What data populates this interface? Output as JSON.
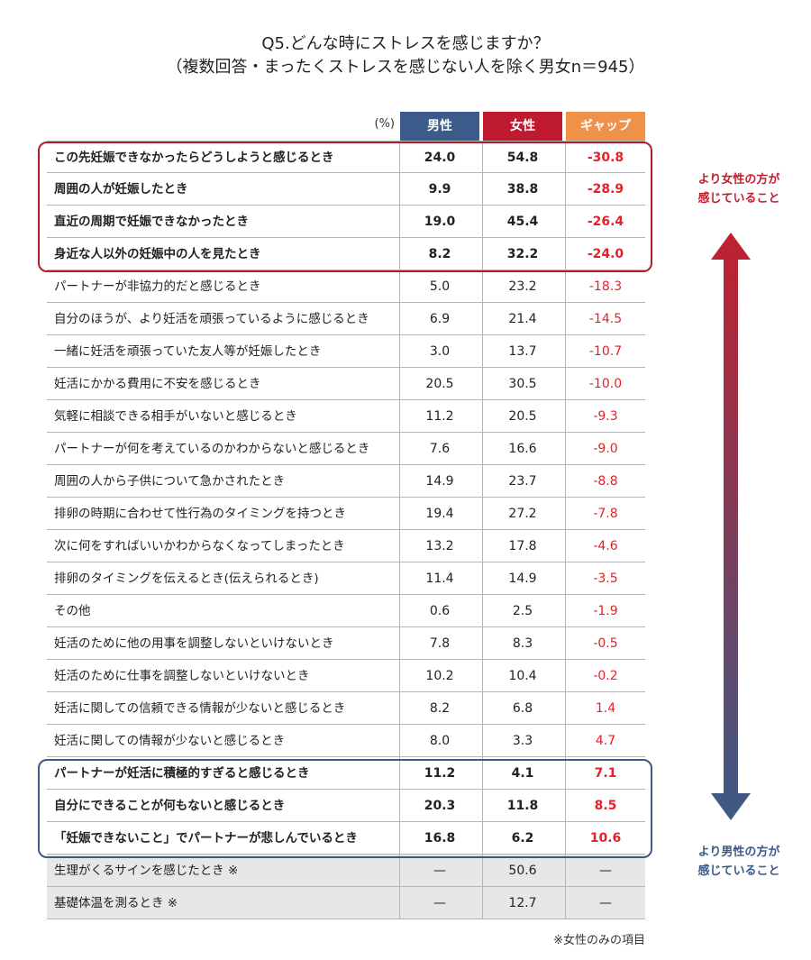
{
  "title_line1": "Q5.どんな時にストレスを感じますか？",
  "title_line2": "（複数回答・まったくストレスを感じない人を除く男女n＝945）",
  "unit_label": "(%)",
  "columns": {
    "male": "男性",
    "female": "女性",
    "gap": "ギャップ"
  },
  "side_labels": {
    "top_line1": "より女性の方が",
    "top_line2": "感じていること",
    "bottom_line1": "より男性の方が",
    "bottom_line2": "感じていること"
  },
  "note": "※女性のみの項目",
  "colors": {
    "male": "#3c5a8a",
    "female": "#bf1a2f",
    "gap": "#f0914a",
    "gap_text": "#e5212c",
    "highlight_female": "#b21e30",
    "highlight_male": "#3d5a86"
  },
  "chart_data": {
    "type": "table",
    "columns": [
      "男性",
      "女性",
      "ギャップ"
    ],
    "rows": [
      {
        "label": "この先妊娠できなかったらどうしようと感じるとき",
        "male": "24.0",
        "female": "54.8",
        "gap": "-30.8",
        "emphasis": true
      },
      {
        "label": "周囲の人が妊娠したとき",
        "male": "9.9",
        "female": "38.8",
        "gap": "-28.9",
        "emphasis": true
      },
      {
        "label": "直近の周期で妊娠できなかったとき",
        "male": "19.0",
        "female": "45.4",
        "gap": "-26.4",
        "emphasis": true
      },
      {
        "label": "身近な人以外の妊娠中の人を見たとき",
        "male": "8.2",
        "female": "32.2",
        "gap": "-24.0",
        "emphasis": true
      },
      {
        "label": "パートナーが非協力的だと感じるとき",
        "male": "5.0",
        "female": "23.2",
        "gap": "-18.3"
      },
      {
        "label": "自分のほうが、より妊活を頑張っているように感じるとき",
        "male": "6.9",
        "female": "21.4",
        "gap": "-14.5"
      },
      {
        "label": "一緒に妊活を頑張っていた友人等が妊娠したとき",
        "male": "3.0",
        "female": "13.7",
        "gap": "-10.7"
      },
      {
        "label": "妊活にかかる費用に不安を感じるとき",
        "male": "20.5",
        "female": "30.5",
        "gap": "-10.0"
      },
      {
        "label": "気軽に相談できる相手がいないと感じるとき",
        "male": "11.2",
        "female": "20.5",
        "gap": "-9.3"
      },
      {
        "label": "パートナーが何を考えているのかわからないと感じるとき",
        "male": "7.6",
        "female": "16.6",
        "gap": "-9.0"
      },
      {
        "label": "周囲の人から子供について急かされたとき",
        "male": "14.9",
        "female": "23.7",
        "gap": "-8.8"
      },
      {
        "label": "排卵の時期に合わせて性行為のタイミングを持つとき",
        "male": "19.4",
        "female": "27.2",
        "gap": "-7.8"
      },
      {
        "label": "次に何をすればいいかわからなくなってしまったとき",
        "male": "13.2",
        "female": "17.8",
        "gap": "-4.6"
      },
      {
        "label": "排卵のタイミングを伝えるとき(伝えられるとき)",
        "male": "11.4",
        "female": "14.9",
        "gap": "-3.5"
      },
      {
        "label": "その他",
        "male": "0.6",
        "female": "2.5",
        "gap": "-1.9"
      },
      {
        "label": "妊活のために他の用事を調整しないといけないとき",
        "male": "7.8",
        "female": "8.3",
        "gap": "-0.5"
      },
      {
        "label": "妊活のために仕事を調整しないといけないとき",
        "male": "10.2",
        "female": "10.4",
        "gap": "-0.2"
      },
      {
        "label": "妊活に関しての信頼できる情報が少ないと感じるとき",
        "male": "8.2",
        "female": "6.8",
        "gap": "1.4"
      },
      {
        "label": "妊活に関しての情報が少ないと感じるとき",
        "male": "8.0",
        "female": "3.3",
        "gap": "4.7"
      },
      {
        "label": "パートナーが妊活に積極的すぎると感じるとき",
        "male": "11.2",
        "female": "4.1",
        "gap": "7.1",
        "emphasis": true
      },
      {
        "label": "自分にできることが何もないと感じるとき",
        "male": "20.3",
        "female": "11.8",
        "gap": "8.5",
        "emphasis": true
      },
      {
        "label": "「妊娠できないこと」でパートナーが悲しんでいるとき",
        "male": "16.8",
        "female": "6.2",
        "gap": "10.6",
        "emphasis": true
      },
      {
        "label": "生理がくるサインを感じたとき ※",
        "male": "—",
        "female": "50.6",
        "gap": "—",
        "female_only": true
      },
      {
        "label": "基礎体温を測るとき ※",
        "male": "—",
        "female": "12.7",
        "gap": "—",
        "female_only": true
      }
    ]
  }
}
